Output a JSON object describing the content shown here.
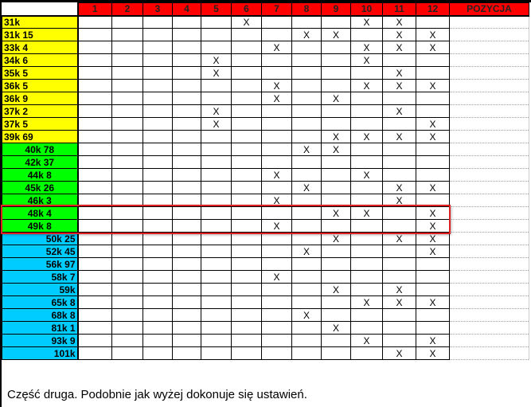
{
  "columns": [
    "1",
    "2",
    "3",
    "4",
    "5",
    "6",
    "7",
    "8",
    "9",
    "10",
    "11",
    "12"
  ],
  "position_header": "POZYCJA",
  "mark": "X",
  "colors": {
    "header": "#ff0000",
    "yellow": "#ffff00",
    "green": "#00ff00",
    "blue": "#00ccff",
    "highlight": "#e02020"
  },
  "rows": [
    {
      "label": "31k",
      "group": "yellow",
      "marks": [
        6,
        10,
        11
      ]
    },
    {
      "label": "31k 15",
      "group": "yellow",
      "marks": [
        8,
        9,
        11,
        12
      ]
    },
    {
      "label": "33k 4",
      "group": "yellow",
      "marks": [
        7,
        10,
        11,
        12
      ]
    },
    {
      "label": "34k 6",
      "group": "yellow",
      "marks": [
        5,
        10
      ]
    },
    {
      "label": "35k 5",
      "group": "yellow",
      "marks": [
        5,
        11
      ]
    },
    {
      "label": "36k 5",
      "group": "yellow",
      "marks": [
        7,
        10,
        11,
        12
      ]
    },
    {
      "label": "36k 9",
      "group": "yellow",
      "marks": [
        7,
        9
      ]
    },
    {
      "label": "37k 2",
      "group": "yellow",
      "marks": [
        5,
        11
      ]
    },
    {
      "label": "37k 5",
      "group": "yellow",
      "marks": [
        5,
        12
      ]
    },
    {
      "label": "39k 69",
      "group": "yellow",
      "marks": [
        9,
        10,
        11,
        12
      ]
    },
    {
      "label": "40k 78",
      "group": "green",
      "marks": [
        8,
        9
      ]
    },
    {
      "label": "42k 37",
      "group": "green",
      "marks": []
    },
    {
      "label": "44k 8",
      "group": "green",
      "marks": [
        7,
        10
      ]
    },
    {
      "label": "45k 26",
      "group": "green",
      "marks": [
        8,
        11,
        12
      ]
    },
    {
      "label": "46k 3",
      "group": "green",
      "marks": [
        7,
        11
      ]
    },
    {
      "label": "48k 4",
      "group": "green",
      "marks": [
        9,
        10,
        12
      ]
    },
    {
      "label": "49k 8",
      "group": "green",
      "marks": [
        7,
        12
      ]
    },
    {
      "label": "50k 25",
      "group": "blue",
      "marks": [
        9,
        11,
        12
      ]
    },
    {
      "label": "52k 45",
      "group": "blue",
      "marks": [
        8,
        12
      ]
    },
    {
      "label": "56k 97",
      "group": "blue",
      "marks": []
    },
    {
      "label": "58k 7",
      "group": "blue",
      "marks": [
        7
      ]
    },
    {
      "label": "59k",
      "group": "blue",
      "marks": [
        9,
        11
      ]
    },
    {
      "label": "65k 8",
      "group": "blue",
      "marks": [
        10,
        11,
        12
      ]
    },
    {
      "label": "68k 8",
      "group": "blue",
      "marks": [
        8
      ]
    },
    {
      "label": "81k 1",
      "group": "blue",
      "marks": [
        9
      ]
    },
    {
      "label": "93k 9",
      "group": "blue",
      "marks": [
        10,
        12
      ]
    },
    {
      "label": "101k",
      "group": "blue",
      "marks": [
        11,
        12
      ]
    }
  ],
  "caption": "Część druga. Podobnie jak wyżej dokonuje się ustawień."
}
